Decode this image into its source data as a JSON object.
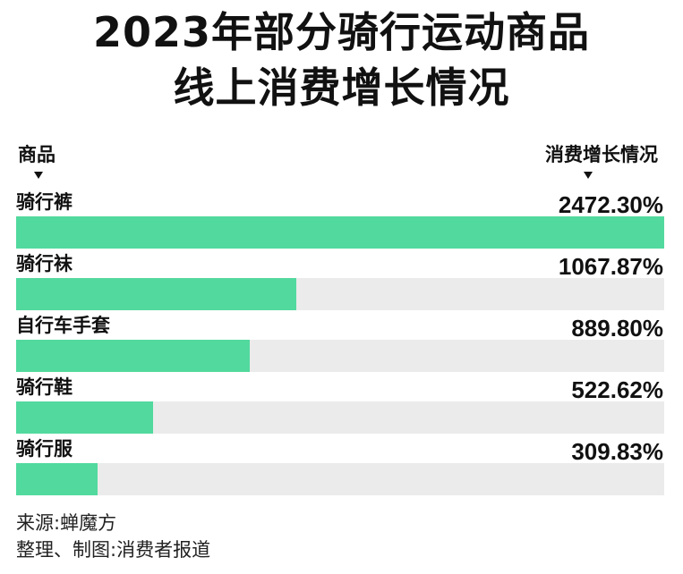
{
  "title_line1": "2023年部分骑行运动商品",
  "title_line2": "线上消费增长情况",
  "header": {
    "category": "商品",
    "value": "消费增长情况"
  },
  "chart_data": {
    "type": "bar",
    "orientation": "horizontal",
    "categories": [
      "骑行裤",
      "骑行袜",
      "自行车手套",
      "骑行鞋",
      "骑行服"
    ],
    "values": [
      2472.3,
      1067.87,
      889.8,
      522.62,
      309.83
    ],
    "value_labels": [
      "2472.30%",
      "1067.87%",
      "889.80%",
      "522.62%",
      "309.83%"
    ],
    "unit": "%",
    "xlim": [
      0,
      2472.3
    ],
    "bar_color": "#52d99e",
    "track_color": "#ebebeb"
  },
  "footer": {
    "source": "来源:蝉魔方",
    "credit": "整理、制图:消费者报道"
  }
}
